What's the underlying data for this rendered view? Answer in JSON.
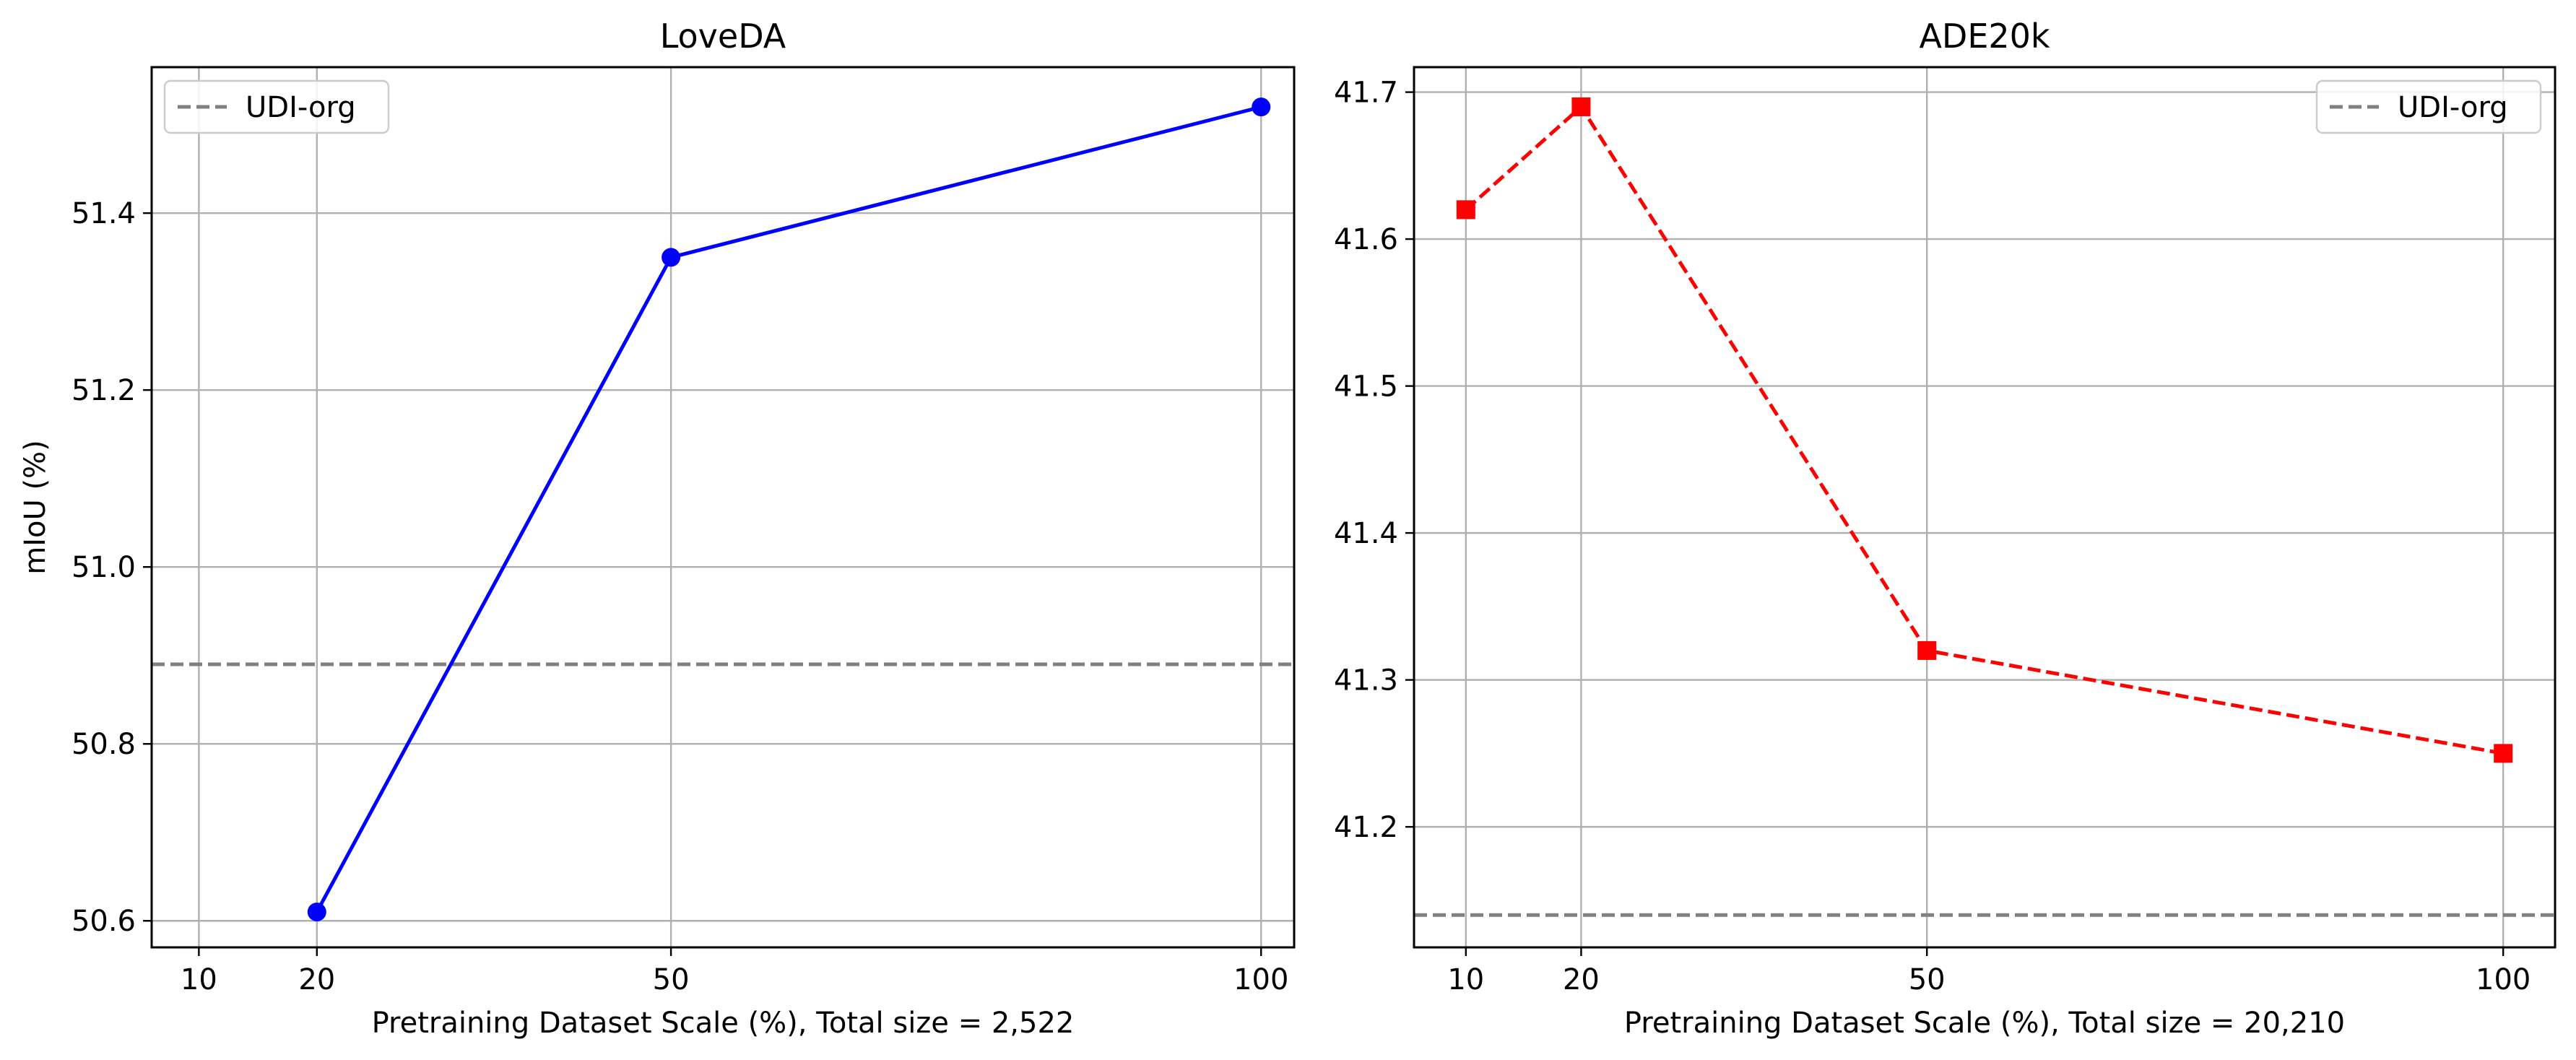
{
  "chart_data": [
    {
      "type": "line",
      "title": "LoveDA",
      "xlabel": "Pretraining Dataset Scale (%), Total size = 2,522",
      "ylabel": "mIoU (%)",
      "x": [
        20,
        50,
        100
      ],
      "xticks": [
        10,
        20,
        50,
        100
      ],
      "xlim": [
        6,
        102.8
      ],
      "yticks": [
        50.6,
        50.8,
        51.0,
        51.2,
        51.4
      ],
      "ylim": [
        50.57,
        51.565
      ],
      "grid": true,
      "legend_position": "upper-left",
      "series": [
        {
          "name": "",
          "values": [
            50.61,
            51.35,
            51.52
          ],
          "color": "#0000ff",
          "line_style": "solid",
          "marker": "circle"
        }
      ],
      "reference_lines": [
        {
          "name": "UDI-org",
          "y": 50.89,
          "color": "#808080",
          "line_style": "dashed"
        }
      ]
    },
    {
      "type": "line",
      "title": "ADE20k",
      "xlabel": "Pretraining Dataset Scale (%), Total size = 20,210",
      "ylabel": "",
      "x": [
        10,
        20,
        50,
        100
      ],
      "xticks": [
        10,
        20,
        50,
        100
      ],
      "xlim": [
        5.5,
        104.5
      ],
      "yticks": [
        41.2,
        41.3,
        41.4,
        41.5,
        41.6,
        41.7
      ],
      "ylim": [
        41.118,
        41.717
      ],
      "grid": true,
      "legend_position": "upper-right",
      "series": [
        {
          "name": "",
          "values": [
            41.62,
            41.69,
            41.32,
            41.25
          ],
          "color": "#ff0000",
          "line_style": "dashed",
          "marker": "square"
        }
      ],
      "reference_lines": [
        {
          "name": "UDI-org",
          "y": 41.14,
          "color": "#808080",
          "line_style": "dashed"
        }
      ]
    }
  ]
}
